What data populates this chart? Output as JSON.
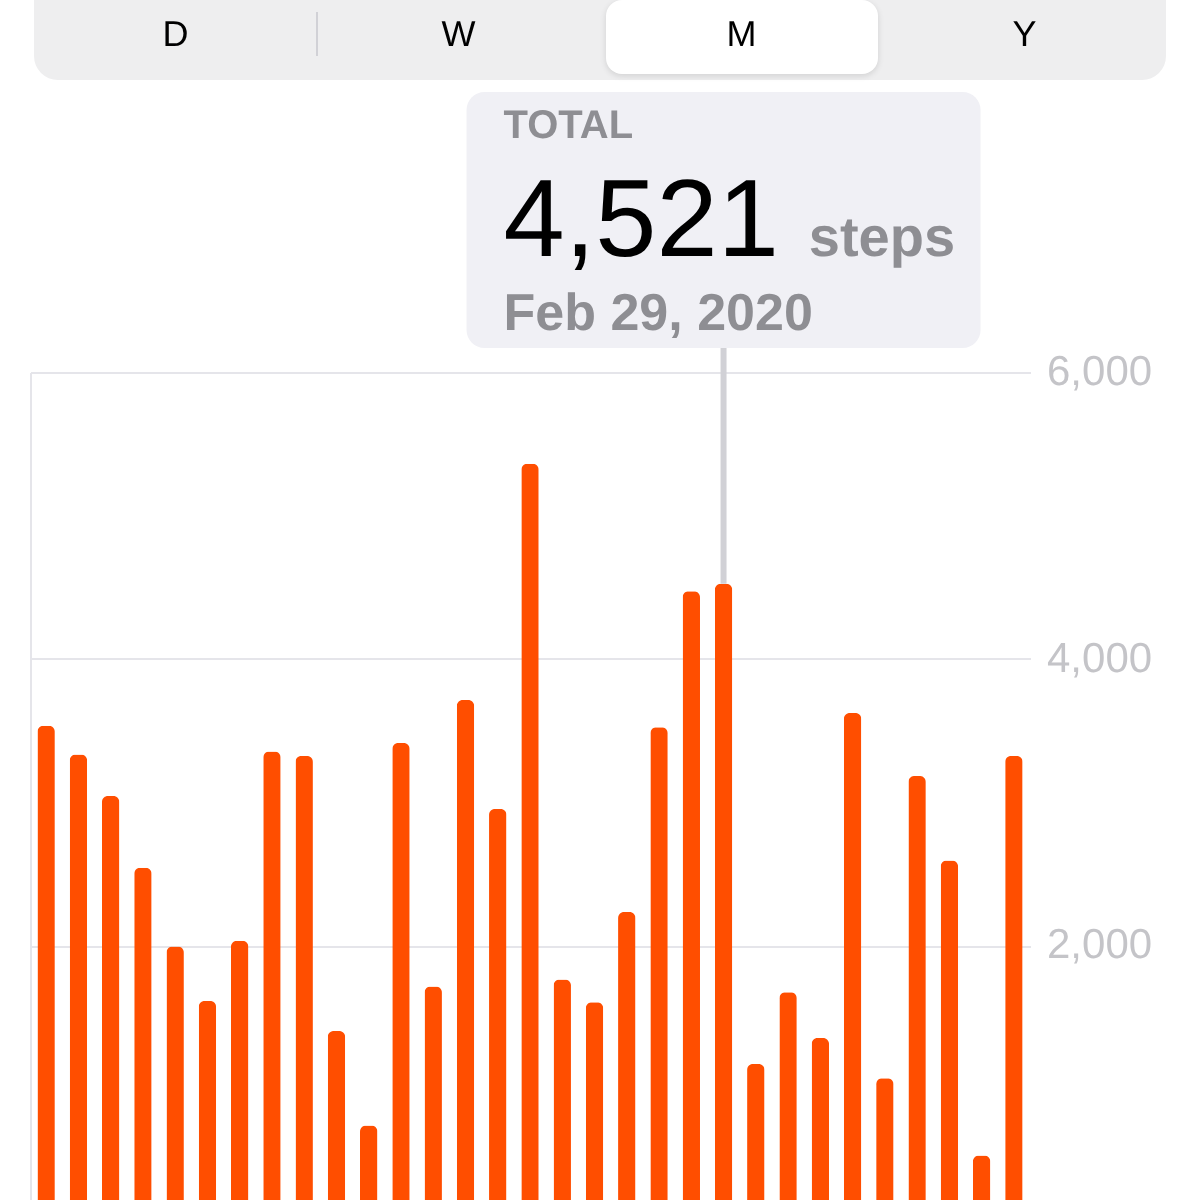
{
  "chart_data": [
    {
      "type": "other",
      "annotations": [
        "D",
        "W",
        "M",
        "Y"
      ]
    },
    {
      "type": "bar",
      "categories": [
        null,
        null,
        null,
        null,
        null,
        null,
        null,
        null,
        null,
        null,
        null,
        null,
        null,
        null,
        null,
        null,
        null,
        null,
        null,
        null,
        null,
        null,
        null,
        null,
        null,
        null,
        null,
        null,
        null,
        null,
        null
      ],
      "values": [
        3530,
        3330,
        3040,
        2540,
        1990,
        1610,
        2030,
        3350,
        3320,
        1400,
        740,
        3410,
        1710,
        3710,
        2950,
        5360,
        1760,
        1600,
        2230,
        3520,
        4470,
        4521,
        1170,
        1670,
        1350,
        3620,
        1070,
        3180,
        2590,
        530,
        3320
      ],
      "value_labels": [
        null,
        null,
        null,
        null,
        null,
        null,
        null,
        null,
        null,
        null,
        null,
        null,
        null,
        null,
        null,
        null,
        null,
        null,
        null,
        null,
        null,
        "4,521",
        null,
        null,
        null,
        null,
        null,
        null,
        null,
        null,
        null
      ],
      "color": "#ff4e00",
      "ylim": [
        220,
        6000
      ],
      "yticks": [
        {
          "value": 2000,
          "label": "2,000"
        },
        {
          "value": 4000,
          "label": "4,000"
        },
        {
          "value": 6000,
          "label": "6,000"
        }
      ],
      "grid": "y",
      "tick_labels": "y",
      "annotations": [
        "TOTAL",
        "steps",
        "Feb 29, 2020"
      ]
    }
  ]
}
